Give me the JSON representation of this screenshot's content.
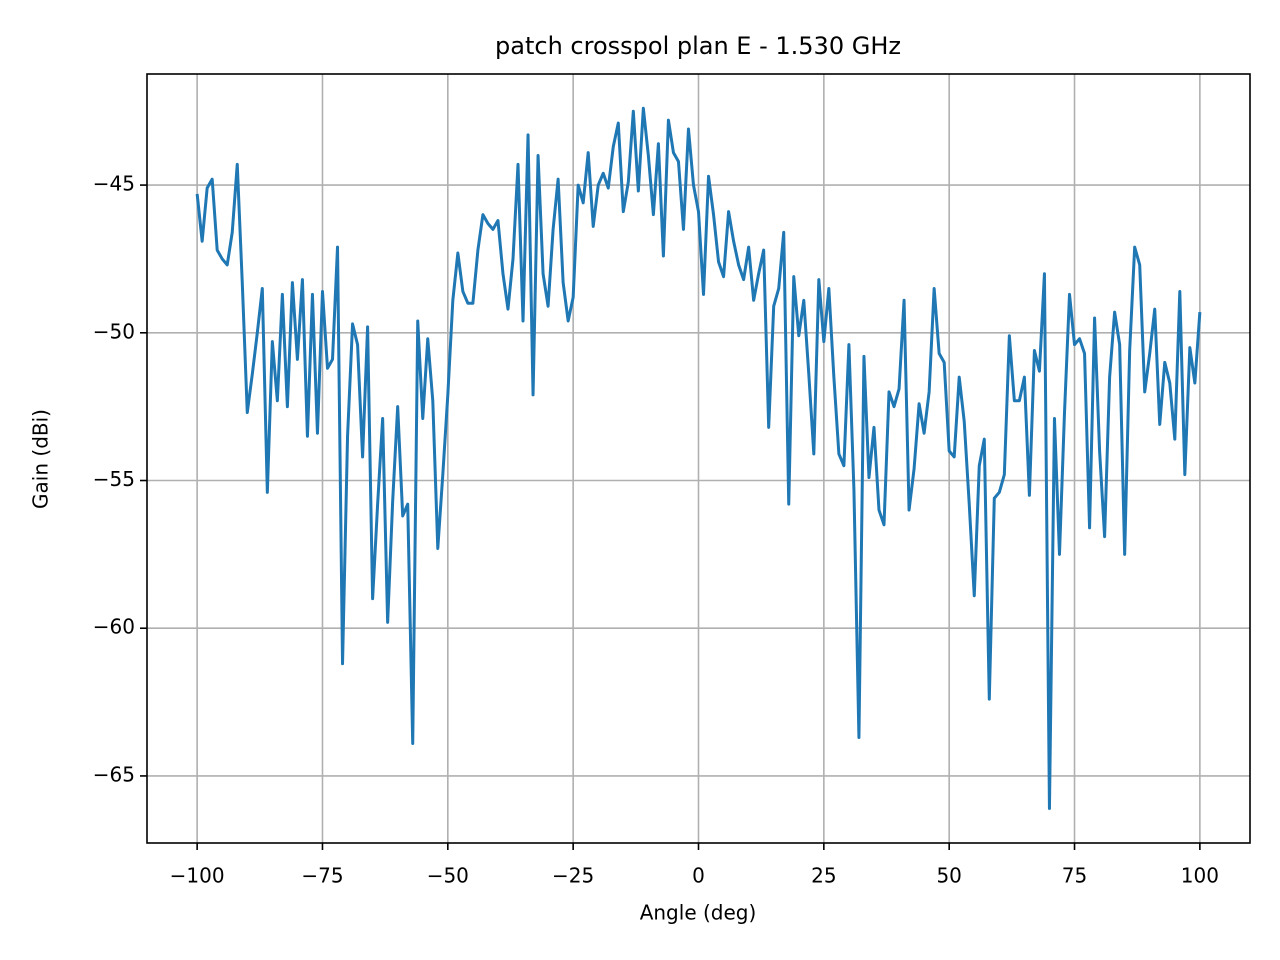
{
  "chart_data": {
    "type": "line",
    "title": "patch crosspol plan E - 1.530 GHz",
    "xlabel": "Angle (deg)",
    "ylabel": "Gain (dBi)",
    "color": "#1f77b4",
    "grid": true,
    "xlim": [
      -110,
      110
    ],
    "ylim": [
      -67.27,
      -41.24
    ],
    "xticks": [
      {
        "value": -100,
        "label": "−100"
      },
      {
        "value": -75,
        "label": "−75"
      },
      {
        "value": -50,
        "label": "−50"
      },
      {
        "value": -25,
        "label": "−25"
      },
      0,
      25,
      50,
      75,
      100
    ],
    "yticks": [
      {
        "value": -65,
        "label": "−65"
      },
      {
        "value": -60,
        "label": "−60"
      },
      {
        "value": -55,
        "label": "−55"
      },
      {
        "value": -50,
        "label": "−50"
      },
      {
        "value": -45,
        "label": "−45"
      }
    ],
    "x": [
      -100,
      -99,
      -98,
      -97,
      -96,
      -95,
      -94,
      -93,
      -92,
      -91,
      -90,
      -89,
      -88,
      -87,
      -86,
      -85,
      -84,
      -83,
      -82,
      -81,
      -80,
      -79,
      -78,
      -77,
      -76,
      -75,
      -74,
      -73,
      -72,
      -71,
      -70,
      -69,
      -68,
      -67,
      -66,
      -65,
      -64,
      -63,
      -62,
      -61,
      -60,
      -59,
      -58,
      -57,
      -56,
      -55,
      -54,
      -53,
      -52,
      -51,
      -50,
      -49,
      -48,
      -47,
      -46,
      -45,
      -44,
      -43,
      -42,
      -41,
      -40,
      -39,
      -38,
      -37,
      -36,
      -35,
      -34,
      -33,
      -32,
      -31,
      -30,
      -29,
      -28,
      -27,
      -26,
      -25,
      -24,
      -23,
      -22,
      -21,
      -20,
      -19,
      -18,
      -17,
      -16,
      -15,
      -14,
      -13,
      -12,
      -11,
      -10,
      -9,
      -8,
      -7,
      -6,
      -5,
      -4,
      -3,
      -2,
      -1,
      0,
      1,
      2,
      3,
      4,
      5,
      6,
      7,
      8,
      9,
      10,
      11,
      12,
      13,
      14,
      15,
      16,
      17,
      18,
      19,
      20,
      21,
      22,
      23,
      24,
      25,
      26,
      27,
      28,
      29,
      30,
      31,
      32,
      33,
      34,
      35,
      36,
      37,
      38,
      39,
      40,
      41,
      42,
      43,
      44,
      45,
      46,
      47,
      48,
      49,
      50,
      51,
      52,
      53,
      54,
      55,
      56,
      57,
      58,
      59,
      60,
      61,
      62,
      63,
      64,
      65,
      66,
      67,
      68,
      69,
      70,
      71,
      72,
      73,
      74,
      75,
      76,
      77,
      78,
      79,
      80,
      81,
      82,
      83,
      84,
      85,
      86,
      87,
      88,
      89,
      90,
      91,
      92,
      93,
      94,
      95,
      96,
      97,
      98,
      99,
      100
    ],
    "values": [
      -45.3,
      -46.9,
      -45.1,
      -44.8,
      -47.2,
      -47.5,
      -47.7,
      -46.6,
      -44.3,
      -48.3,
      -52.7,
      -51.4,
      -50.0,
      -48.5,
      -55.4,
      -50.3,
      -52.3,
      -48.7,
      -52.5,
      -48.3,
      -50.9,
      -48.2,
      -53.5,
      -48.7,
      -53.4,
      -48.6,
      -51.2,
      -50.9,
      -47.1,
      -61.2,
      -53.5,
      -49.7,
      -50.4,
      -54.2,
      -49.8,
      -59.0,
      -55.8,
      -52.9,
      -59.8,
      -55.7,
      -52.5,
      -56.2,
      -55.8,
      -63.9,
      -49.6,
      -52.9,
      -50.2,
      -52.3,
      -57.3,
      -54.8,
      -52.1,
      -48.9,
      -47.3,
      -48.6,
      -49.0,
      -49.0,
      -47.2,
      -46.0,
      -46.3,
      -46.5,
      -46.2,
      -48.0,
      -49.2,
      -47.5,
      -44.3,
      -49.6,
      -43.3,
      -52.1,
      -44.0,
      -48.0,
      -49.1,
      -46.5,
      -44.8,
      -48.3,
      -49.6,
      -48.8,
      -45.0,
      -45.6,
      -43.9,
      -46.4,
      -45.0,
      -44.6,
      -45.1,
      -43.7,
      -42.9,
      -45.9,
      -44.9,
      -42.5,
      -45.2,
      -42.4,
      -44.0,
      -46.0,
      -43.6,
      -47.4,
      -42.8,
      -43.9,
      -44.2,
      -46.5,
      -43.1,
      -45.0,
      -45.9,
      -48.7,
      -44.7,
      -46.0,
      -47.6,
      -48.1,
      -45.9,
      -46.9,
      -47.7,
      -48.2,
      -47.1,
      -48.9,
      -48.0,
      -47.2,
      -53.2,
      -49.1,
      -48.5,
      -46.6,
      -55.8,
      -48.1,
      -50.1,
      -48.9,
      -51.4,
      -54.1,
      -48.2,
      -50.3,
      -48.5,
      -51.5,
      -54.1,
      -54.5,
      -50.4,
      -55.3,
      -63.7,
      -50.8,
      -54.9,
      -53.2,
      -56.0,
      -56.5,
      -52.0,
      -52.5,
      -51.9,
      -48.9,
      -56.0,
      -54.6,
      -52.4,
      -53.4,
      -52.0,
      -48.5,
      -50.7,
      -51.0,
      -54.0,
      -54.2,
      -51.5,
      -53.0,
      -55.8,
      -58.9,
      -54.5,
      -53.6,
      -62.4,
      -55.6,
      -55.4,
      -54.8,
      -50.1,
      -52.3,
      -52.3,
      -51.5,
      -55.5,
      -50.6,
      -51.3,
      -48.0,
      -66.1,
      -52.9,
      -57.5,
      -52.7,
      -48.7,
      -50.4,
      -50.2,
      -50.7,
      -56.6,
      -49.5,
      -54.0,
      -56.9,
      -51.5,
      -49.3,
      -50.4,
      -57.5,
      -50.6,
      -47.1,
      -47.7,
      -52.0,
      -50.7,
      -49.2,
      -53.1,
      -51.0,
      -51.7,
      -53.6,
      -48.6,
      -54.8,
      -50.5,
      -51.7,
      -49.3
    ]
  }
}
